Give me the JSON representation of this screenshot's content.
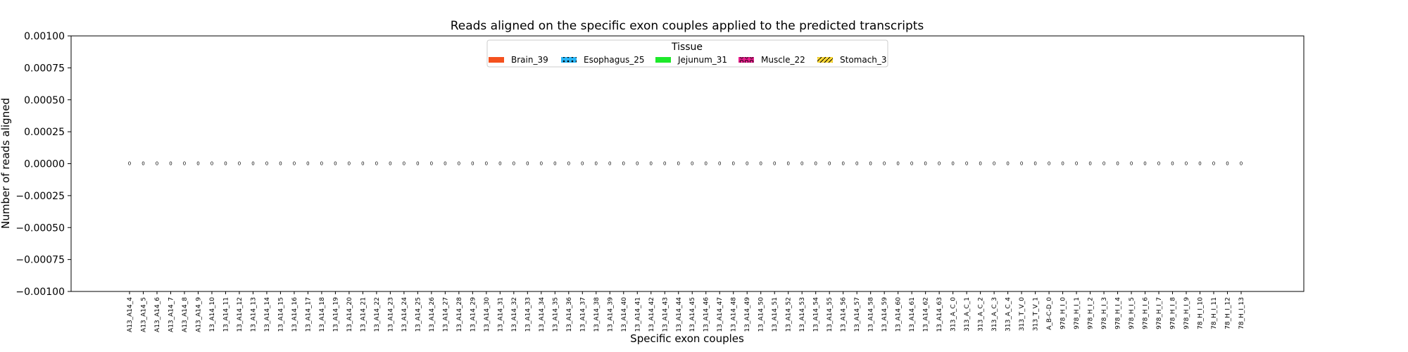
{
  "chart_data": {
    "type": "bar",
    "title": "Reads aligned on the specific exon couples applied to the predicted transcripts",
    "xlabel": "Specific exon couples",
    "ylabel": "Number of reads aligned",
    "ylim": [
      -0.001,
      0.001
    ],
    "yticks": [
      "0.00100",
      "0.00075",
      "0.00050",
      "0.00025",
      "0.00000",
      "−0.00025",
      "−0.00050",
      "−0.00075",
      "−0.00100"
    ],
    "ytick_values": [
      0.001,
      0.00075,
      0.0005,
      0.00025,
      0,
      -0.00025,
      -0.0005,
      -0.00075,
      -0.001
    ],
    "categories": [
      "A13_A14_4",
      "A13_A14_5",
      "A13_A14_6",
      "A13_A14_7",
      "A13_A14_8",
      "A13_A14_9",
      "13_A14_10",
      "13_A14_11",
      "13_A14_12",
      "13_A14_13",
      "13_A14_14",
      "13_A14_15",
      "13_A14_16",
      "13_A14_17",
      "13_A14_18",
      "13_A14_19",
      "13_A14_20",
      "13_A14_21",
      "13_A14_22",
      "13_A14_23",
      "13_A14_24",
      "13_A14_25",
      "13_A14_26",
      "13_A14_27",
      "13_A14_28",
      "13_A14_29",
      "13_A14_30",
      "13_A14_31",
      "13_A14_32",
      "13_A14_33",
      "13_A14_34",
      "13_A14_35",
      "13_A14_36",
      "13_A14_37",
      "13_A14_38",
      "13_A14_39",
      "13_A14_40",
      "13_A14_41",
      "13_A14_42",
      "13_A14_43",
      "13_A14_44",
      "13_A14_45",
      "13_A14_46",
      "13_A14_47",
      "13_A14_48",
      "13_A14_49",
      "13_A14_50",
      "13_A14_51",
      "13_A14_52",
      "13_A14_53",
      "13_A14_54",
      "13_A14_55",
      "13_A14_56",
      "13_A14_57",
      "13_A14_58",
      "13_A14_59",
      "13_A14_60",
      "13_A14_61",
      "13_A14_62",
      "13_A14_63",
      "313_A_C_0",
      "313_A_C_1",
      "313_A_C_2",
      "313_A_C_3",
      "313_A_C_4",
      "313_T_V_0",
      "313_T_V_1",
      "A_B-C-D_0",
      "978_H_I_0",
      "978_H_I_1",
      "978_H_I_2",
      "978_H_I_3",
      "978_H_I_4",
      "978_H_I_5",
      "978_H_I_6",
      "978_H_I_7",
      "978_H_I_8",
      "978_H_I_9",
      "78_H_I_10",
      "78_H_I_11",
      "78_H_I_12",
      "78_H_I_13"
    ],
    "series": [
      {
        "name": "Brain_39",
        "color": "#f4511e",
        "hatch": "none",
        "value": 0
      },
      {
        "name": "Esophagus_25",
        "color": "#29b6f6",
        "hatch": "dots",
        "value": 0
      },
      {
        "name": "Jejunum_31",
        "color": "#1de92a",
        "hatch": "none",
        "value": 0
      },
      {
        "name": "Muscle_22",
        "color": "#e91e8c",
        "hatch": "circles",
        "value": 0
      },
      {
        "name": "Stomach_3",
        "color": "#fdd835",
        "hatch": "slash",
        "value": 0
      }
    ],
    "bar_value_label": "0",
    "legend": {
      "title": "Tissue",
      "placement": "top-center"
    },
    "grid": false
  }
}
